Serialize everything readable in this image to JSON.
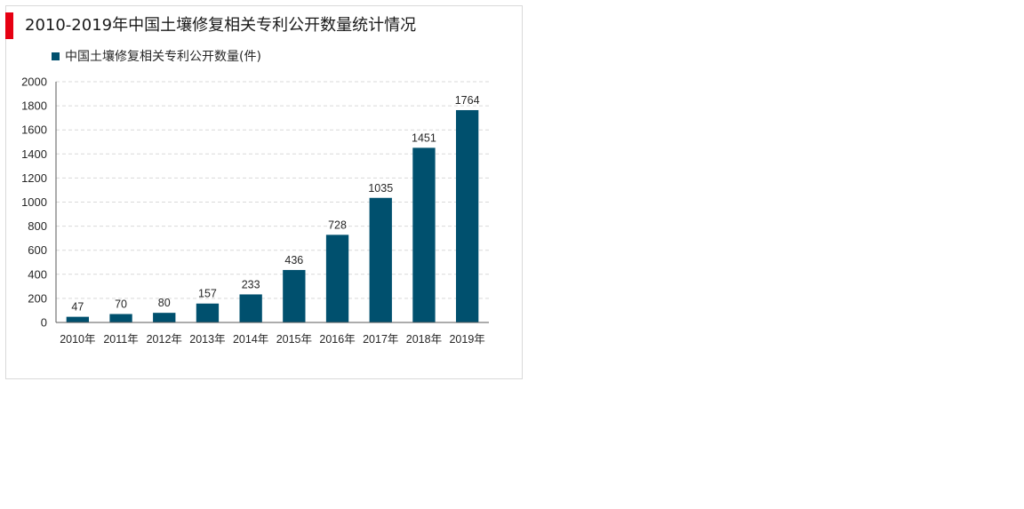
{
  "title": "2010-2019年中国土壤修复相关专利公开数量统计情况",
  "accent_color": "#e60012",
  "bar_color": "#00506e",
  "chart_data": {
    "type": "bar",
    "categories": [
      "2010年",
      "2011年",
      "2012年",
      "2013年",
      "2014年",
      "2015年",
      "2016年",
      "2017年",
      "2018年",
      "2019年"
    ],
    "series": [
      {
        "name": "中国土壤修复相关专利公开数量(件)",
        "values": [
          47,
          70,
          80,
          157,
          233,
          436,
          728,
          1035,
          1451,
          1764
        ]
      }
    ],
    "ylim": [
      0,
      2000
    ],
    "yticks": [
      0,
      200,
      400,
      600,
      800,
      1000,
      1200,
      1400,
      1600,
      1800,
      2000
    ],
    "grid": true,
    "legend_position": "top-left",
    "data_labels": true
  }
}
